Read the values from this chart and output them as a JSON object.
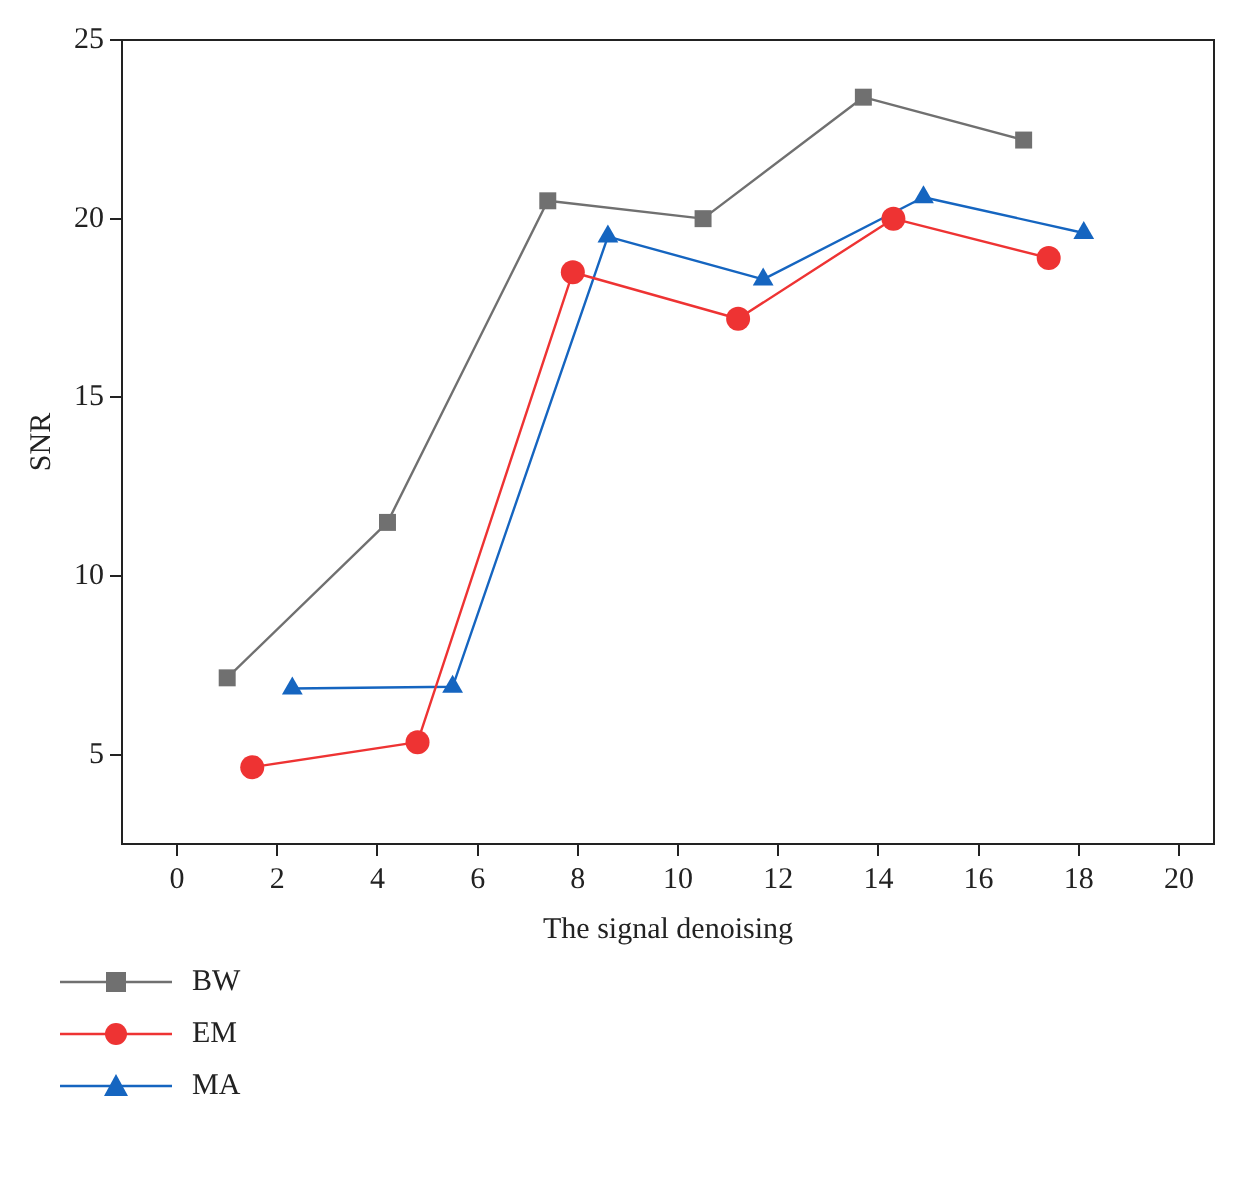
{
  "chart_data": {
    "type": "line",
    "xlabel": "The signal denoising",
    "ylabel": "SNR",
    "xlim": [
      -1.1,
      20.7
    ],
    "ylim": [
      2.5,
      25
    ],
    "xticks": [
      0,
      2,
      4,
      6,
      8,
      10,
      12,
      14,
      16,
      18,
      20
    ],
    "yticks": [
      5,
      10,
      15,
      20,
      25
    ],
    "grid": false,
    "legend": "bottom",
    "line_style": "solid",
    "series": [
      {
        "name": "BW",
        "color": "#707070",
        "marker": "square",
        "x": [
          1.0,
          4.2,
          7.4,
          10.5,
          13.7,
          16.9
        ],
        "values": [
          7.15,
          11.5,
          20.5,
          20.0,
          23.4,
          22.2
        ]
      },
      {
        "name": "EM",
        "color": "#ee3333",
        "marker": "circle",
        "x": [
          1.5,
          4.8,
          7.9,
          11.2,
          14.3,
          17.4
        ],
        "values": [
          4.65,
          5.35,
          18.5,
          17.2,
          20.0,
          18.9
        ]
      },
      {
        "name": "MA",
        "color": "#1565c0",
        "marker": "triangle",
        "x": [
          2.3,
          5.5,
          8.6,
          11.7,
          14.9,
          18.1
        ],
        "values": [
          6.85,
          6.9,
          19.5,
          18.3,
          20.6,
          19.6
        ]
      }
    ]
  }
}
